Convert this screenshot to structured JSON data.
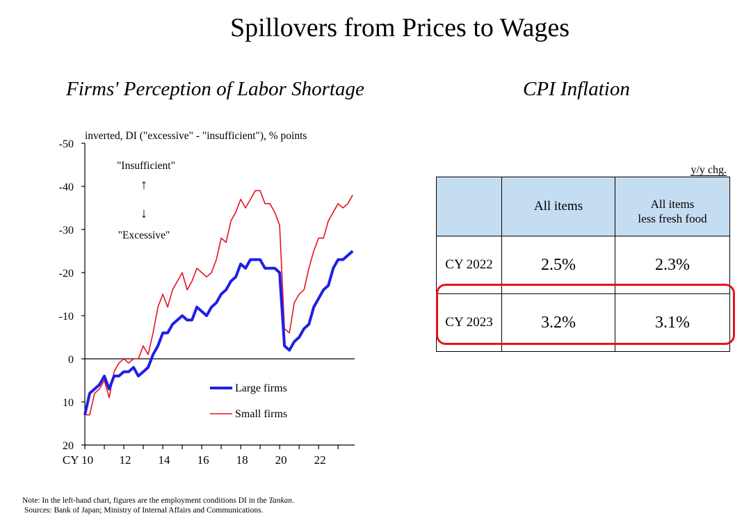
{
  "page": {
    "title": "Spillovers from Prices to Wages",
    "left_subtitle": "Firms' Perception of Labor Shortage",
    "right_subtitle": "CPI Inflation"
  },
  "chart_data": {
    "type": "line",
    "title": "Firms' Perception of Labor Shortage",
    "ylabel": "inverted, DI (\"excessive\" - \"insufficient\"), % points",
    "inverted_y": true,
    "ylim": [
      20,
      -50
    ],
    "yticks": [
      -50,
      -40,
      -30,
      -20,
      -10,
      0,
      10,
      20
    ],
    "ytick_labels": [
      "-50",
      "-40",
      "-30",
      "-20",
      "-10",
      "0",
      "10",
      "20"
    ],
    "xlim": [
      2010,
      2023.85
    ],
    "xticks": [
      2010,
      2012,
      2014,
      2016,
      2018,
      2020,
      2022
    ],
    "xtick_labels": [
      "CY 10",
      "12",
      "14",
      "16",
      "18",
      "20",
      "22"
    ],
    "annotations": {
      "insufficient": "\"Insufficient\"",
      "excessive": "\"Excessive\"",
      "up_arrow": "↑",
      "down_arrow": "↓"
    },
    "legend": [
      "Large firms",
      "Small firms"
    ],
    "legend_position": "lower-right",
    "series": [
      {
        "name": "Large firms",
        "color": "#1f1fe6",
        "x": [
          2010.0,
          2010.25,
          2010.5,
          2010.75,
          2011.0,
          2011.25,
          2011.5,
          2011.75,
          2012.0,
          2012.25,
          2012.5,
          2012.75,
          2013.0,
          2013.25,
          2013.5,
          2013.75,
          2014.0,
          2014.25,
          2014.5,
          2014.75,
          2015.0,
          2015.25,
          2015.5,
          2015.75,
          2016.0,
          2016.25,
          2016.5,
          2016.75,
          2017.0,
          2017.25,
          2017.5,
          2017.75,
          2018.0,
          2018.25,
          2018.5,
          2018.75,
          2019.0,
          2019.25,
          2019.5,
          2019.75,
          2020.0,
          2020.25,
          2020.5,
          2020.75,
          2021.0,
          2021.25,
          2021.5,
          2021.75,
          2022.0,
          2022.25,
          2022.5,
          2022.75,
          2023.0,
          2023.25,
          2023.5,
          2023.75
        ],
        "y": [
          13,
          8,
          7,
          6,
          4,
          7,
          4,
          4,
          3,
          3,
          2,
          4,
          3,
          2,
          -1,
          -3,
          -6,
          -6,
          -8,
          -9,
          -10,
          -9,
          -9,
          -12,
          -11,
          -10,
          -12,
          -13,
          -15,
          -16,
          -18,
          -19,
          -22,
          -21,
          -23,
          -23,
          -23,
          -21,
          -21,
          -21,
          -20,
          -3,
          -2,
          -4,
          -5,
          -7,
          -8,
          -12,
          -14,
          -16,
          -17,
          -21,
          -23,
          -23,
          -24,
          -25
        ]
      },
      {
        "name": "Small firms",
        "color": "#e8111e",
        "x": [
          2010.0,
          2010.25,
          2010.5,
          2010.75,
          2011.0,
          2011.25,
          2011.5,
          2011.75,
          2012.0,
          2012.25,
          2012.5,
          2012.75,
          2013.0,
          2013.25,
          2013.5,
          2013.75,
          2014.0,
          2014.25,
          2014.5,
          2014.75,
          2015.0,
          2015.25,
          2015.5,
          2015.75,
          2016.0,
          2016.25,
          2016.5,
          2016.75,
          2017.0,
          2017.25,
          2017.5,
          2017.75,
          2018.0,
          2018.25,
          2018.5,
          2018.75,
          2019.0,
          2019.25,
          2019.5,
          2019.75,
          2020.0,
          2020.25,
          2020.5,
          2020.75,
          2021.0,
          2021.25,
          2021.5,
          2021.75,
          2022.0,
          2022.25,
          2022.5,
          2022.75,
          2023.0,
          2023.25,
          2023.5,
          2023.75
        ],
        "y": [
          13,
          13,
          8,
          7,
          5,
          9,
          3,
          1,
          0,
          1,
          0,
          0,
          -3,
          -1,
          -6,
          -12,
          -15,
          -12,
          -16,
          -18,
          -20,
          -16,
          -18,
          -21,
          -20,
          -19,
          -20,
          -23,
          -28,
          -27,
          -32,
          -34,
          -37,
          -35,
          -37,
          -39,
          -39,
          -36,
          -36,
          -34,
          -31,
          -7,
          -6,
          -13,
          -15,
          -16,
          -21,
          -25,
          -28,
          -28,
          -32,
          -34,
          -36,
          -35,
          -36,
          -38
        ]
      }
    ]
  },
  "cpi_table": {
    "unit": "y/y chg.",
    "columns": [
      "All items",
      "All items",
      "less fresh food"
    ],
    "rows": [
      {
        "label": "CY 2022",
        "all_items": "2.5%",
        "less_fresh_food": "2.3%"
      },
      {
        "label": "CY 2023",
        "all_items": "3.2%",
        "less_fresh_food": "3.1%"
      }
    ],
    "highlight_color": "#e8111e",
    "header_color": "#c5ddf1"
  },
  "footnote": {
    "note_prefix": "Note: In the left-hand chart, figures are the employment conditions DI in the ",
    "note_italic": "Tankan",
    "note_suffix": ".",
    "sources": "Sources: Bank of Japan; Ministry of Internal Affairs and Communications."
  }
}
